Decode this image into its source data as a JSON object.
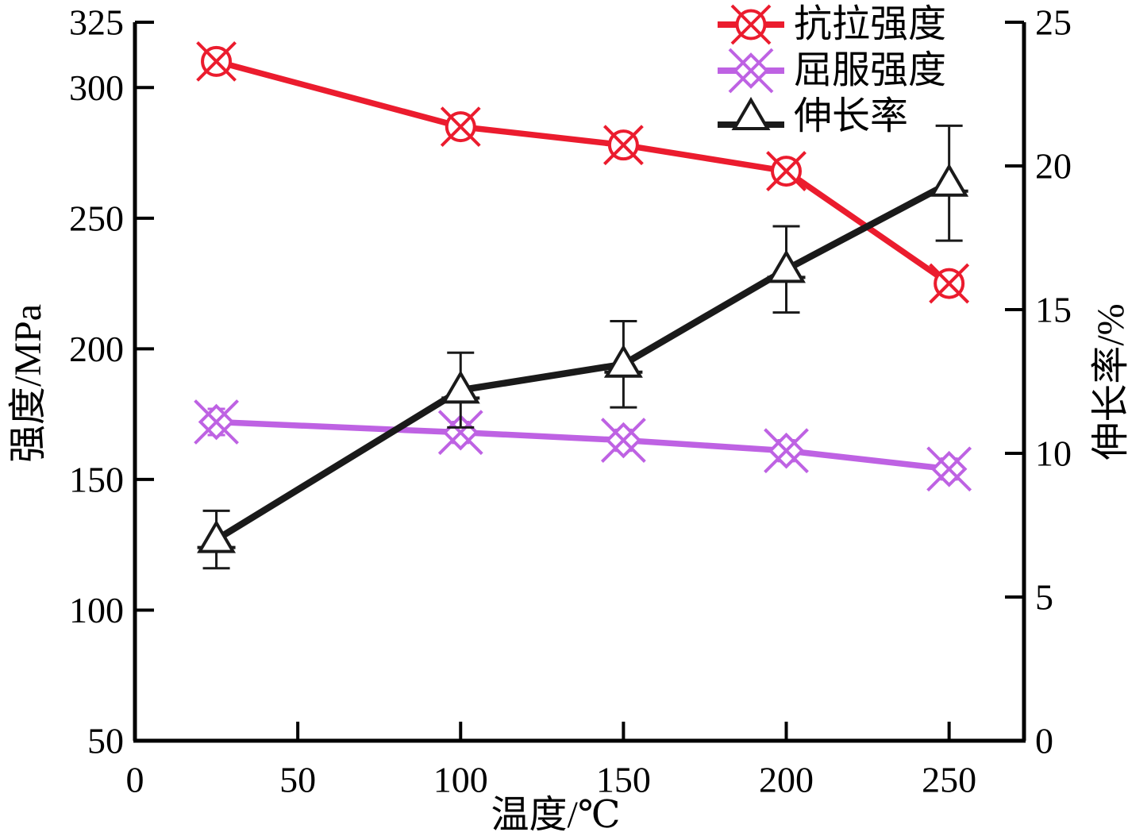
{
  "figure": {
    "background": "#ffffff",
    "axis_color": "#000000"
  },
  "chart_data": {
    "type": "line",
    "title": "",
    "xlabel": "温度/℃",
    "ylabel_left": "强度/MPa",
    "ylabel_right": "伸长率/%",
    "xlim": [
      0,
      273
    ],
    "ylim_left": [
      50,
      325
    ],
    "ylim_right": [
      0,
      25
    ],
    "x_ticks": [
      0,
      50,
      100,
      150,
      200,
      250
    ],
    "y_left_ticks": [
      50,
      100,
      150,
      200,
      250,
      300,
      325
    ],
    "y_right_ticks": [
      0,
      5,
      10,
      15,
      20,
      25
    ],
    "grid": false,
    "legend_position": "top-right-inside",
    "x": [
      25,
      100,
      150,
      200,
      250
    ],
    "series": [
      {
        "name": "抗拉强度",
        "axis": "left",
        "unit": "MPa",
        "marker": "circle-x",
        "color": "#EB1C2E",
        "values": [
          310,
          285,
          278,
          268,
          225
        ],
        "errors": [
          4,
          4,
          4,
          4,
          3
        ]
      },
      {
        "name": "屈服强度",
        "axis": "left",
        "unit": "MPa",
        "marker": "x-diamond",
        "color": "#BE62E3",
        "values": [
          172,
          168,
          165,
          161,
          154
        ],
        "errors": [
          5,
          4,
          4,
          4,
          4
        ]
      },
      {
        "name": "伸长率",
        "axis": "right",
        "unit": "%",
        "marker": "triangle-open",
        "color": "#1A1A1A",
        "values": [
          7.0,
          12.2,
          13.1,
          16.4,
          19.4
        ],
        "errors": [
          1.0,
          1.3,
          1.5,
          1.5,
          2.0
        ]
      }
    ]
  }
}
